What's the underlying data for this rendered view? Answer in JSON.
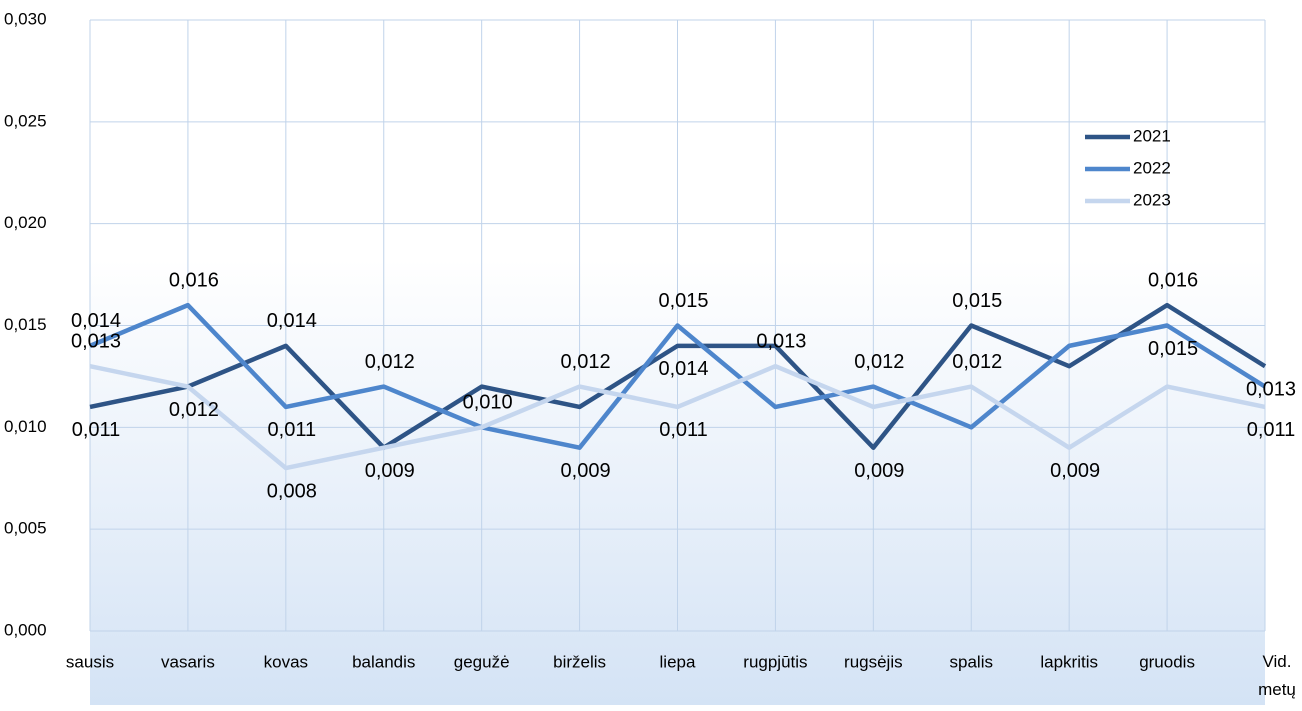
{
  "chart_data": {
    "type": "line",
    "categories": [
      "sausis",
      "vasaris",
      "kovas",
      "balandis",
      "gegužė",
      "birželis",
      "liepa",
      "rugpjūtis",
      "rugsėjis",
      "spalis",
      "lapkritis",
      "gruodis",
      "Vid. metų"
    ],
    "series": [
      {
        "name": "2021",
        "color": "#2e5486",
        "values": [
          0.011,
          0.012,
          0.014,
          0.009,
          0.012,
          0.011,
          0.014,
          0.014,
          0.009,
          0.015,
          0.013,
          0.016,
          0.013
        ],
        "value_labels": [
          "0,011",
          "0,012",
          "0,014",
          "0,009",
          null,
          null,
          "0,014",
          null,
          "0,009",
          "0,015",
          null,
          "0,016",
          "0,013"
        ]
      },
      {
        "name": "2022",
        "color": "#4e86cc",
        "values": [
          0.014,
          0.016,
          0.011,
          0.012,
          0.01,
          0.009,
          0.015,
          0.011,
          0.012,
          0.01,
          0.014,
          0.015,
          0.012
        ],
        "value_labels": [
          "0,014",
          "0,016",
          "0,011",
          "0,012",
          "0,010",
          "0,009",
          "0,015",
          null,
          "0,012",
          null,
          null,
          "0,015",
          null
        ]
      },
      {
        "name": "2023",
        "color": "#c5d6ee",
        "values": [
          0.013,
          0.012,
          0.008,
          0.009,
          0.01,
          0.012,
          0.011,
          0.013,
          0.011,
          0.012,
          0.009,
          0.012,
          0.011
        ],
        "value_labels": [
          "0,013",
          null,
          "0,008",
          null,
          null,
          "0,012",
          "0,011",
          "0,013",
          null,
          "0,012",
          "0,009",
          null,
          "0,011"
        ]
      }
    ],
    "ylim": [
      0,
      0.03
    ],
    "yticks": [
      {
        "value": 0,
        "label": "0,000"
      },
      {
        "value": 0.005,
        "label": "0,005"
      },
      {
        "value": 0.01,
        "label": "0,010"
      },
      {
        "value": 0.015,
        "label": "0,015"
      },
      {
        "value": 0.02,
        "label": "0,020"
      },
      {
        "value": 0.025,
        "label": "0,025"
      },
      {
        "value": 0.03,
        "label": "0,030"
      }
    ],
    "grid": true,
    "legend": "right"
  }
}
